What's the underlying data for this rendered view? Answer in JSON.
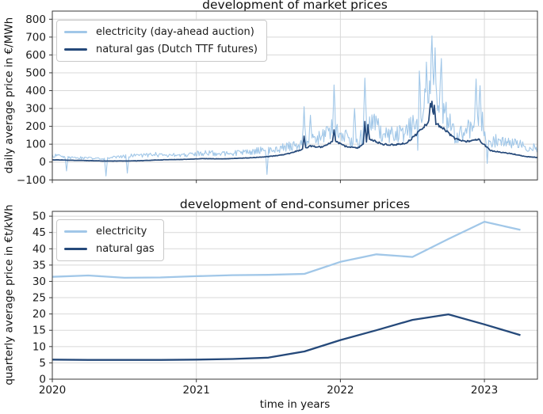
{
  "colors": {
    "electricity": "#a1c7e8",
    "gas": "#25497a",
    "grid": "#d8d8d8",
    "spine": "#3a3a3a",
    "text": "#1a1a1a"
  },
  "chart_data": [
    {
      "type": "line",
      "title": "development of market prices",
      "ylabel": "daily average price in €/MWh",
      "xlabel": "time in years",
      "resolution": "daily",
      "grid": true,
      "legend_position": "upper left",
      "xlim": [
        2020.0,
        2023.37
      ],
      "ylim": [
        -100,
        845
      ],
      "yticks": [
        800,
        700,
        600,
        500,
        400,
        300,
        200,
        100,
        0,
        -100
      ],
      "xticks": [
        2020,
        2021,
        2022,
        2023
      ],
      "xtick_labels_visible": false,
      "seed": 20230501,
      "anchor_t_start": 2020.0417,
      "anchor_t_step": 0.083333,
      "series": [
        {
          "name": "electricity (day-ahead auction)",
          "color_key": "electricity",
          "monthly_mean": [
            35,
            26,
            24,
            19,
            21,
            28,
            35,
            36,
            44,
            34,
            39,
            44,
            50,
            49,
            47,
            52,
            55,
            66,
            74,
            82,
            100,
            128,
            135,
            195,
            135,
            112,
            228,
            162,
            152,
            175,
            242,
            385,
            305,
            152,
            165,
            258,
            122,
            112,
            100,
            88,
            72
          ],
          "noise_frac": 0.32,
          "noise_min": 7,
          "spikes": [
            [
              2020.1,
              -50
            ],
            [
              2020.37,
              -78
            ],
            [
              2020.52,
              -62
            ],
            [
              2021.49,
              -69
            ],
            [
              2021.75,
              310
            ],
            [
              2021.79,
              262
            ],
            [
              2021.955,
              432
            ],
            [
              2022.1,
              300
            ],
            [
              2022.17,
              470
            ],
            [
              2022.545,
              -45
            ],
            [
              2022.55,
              510
            ],
            [
              2022.6,
              560
            ],
            [
              2022.636,
              707
            ],
            [
              2022.66,
              640
            ],
            [
              2022.7,
              580
            ],
            [
              2022.94,
              465
            ],
            [
              2022.97,
              428
            ],
            [
              2023.02,
              -8
            ]
          ]
        },
        {
          "name": "natural gas (Dutch TTF futures)",
          "color_key": "gas",
          "monthly_mean": [
            12,
            10,
            9,
            7,
            5.5,
            6,
            6,
            8,
            11,
            13,
            14,
            16,
            19,
            18,
            18,
            21,
            24,
            28,
            34,
            44,
            64,
            90,
            83,
            120,
            86,
            80,
            128,
            100,
            96,
            106,
            165,
            238,
            192,
            132,
            114,
            128,
            64,
            54,
            44,
            30,
            25
          ],
          "noise_frac": 0.045,
          "noise_min": 0.7,
          "spikes": [
            [
              2021.75,
              145
            ],
            [
              2021.955,
              180
            ],
            [
              2022.17,
              227
            ],
            [
              2022.19,
              210
            ],
            [
              2022.625,
              328
            ],
            [
              2022.636,
              340
            ],
            [
              2022.65,
              318
            ]
          ]
        }
      ]
    },
    {
      "type": "line",
      "title": "development of end-consumer prices",
      "ylabel": "quarterly average price in €t/kWh",
      "xlabel": "time in years",
      "resolution": "quarterly",
      "grid": true,
      "legend_position": "upper left",
      "xlim": [
        2020.0,
        2023.37
      ],
      "ylim": [
        0,
        51.5
      ],
      "yticks": [
        50,
        45,
        40,
        35,
        30,
        25,
        20,
        15,
        10,
        5,
        0
      ],
      "xticks": [
        2020,
        2021,
        2022,
        2023
      ],
      "xtick_labels_visible": true,
      "x": [
        2020.0,
        2020.25,
        2020.5,
        2020.75,
        2021.0,
        2021.25,
        2021.5,
        2021.75,
        2022.0,
        2022.25,
        2022.5,
        2022.75,
        2023.0,
        2023.25
      ],
      "series": [
        {
          "name": "electricity",
          "color_key": "electricity",
          "values": [
            31.4,
            31.8,
            31.1,
            31.2,
            31.6,
            31.9,
            32.0,
            32.3,
            36.0,
            38.3,
            37.5,
            43.0,
            48.3,
            45.8
          ]
        },
        {
          "name": "natural gas",
          "color_key": "gas",
          "values": [
            6.0,
            5.9,
            5.9,
            5.9,
            6.0,
            6.2,
            6.6,
            8.5,
            12.0,
            15.0,
            18.2,
            19.9,
            16.8,
            13.5
          ]
        }
      ]
    }
  ]
}
